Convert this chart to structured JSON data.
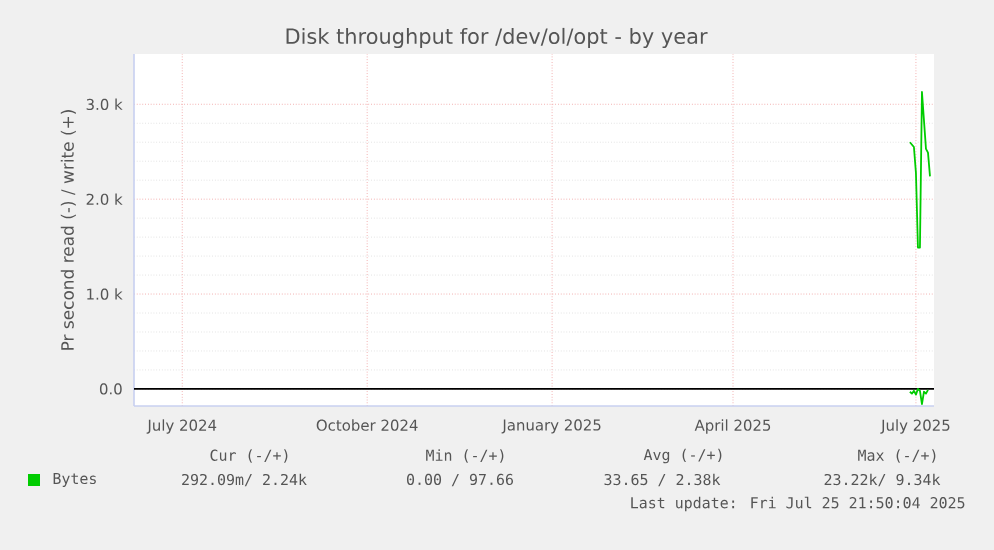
{
  "chart_data": {
    "type": "line",
    "title": "Disk throughput for /dev/ol/opt - by year",
    "ylabel": "Pr second read (-) / write (+)",
    "xlim": [
      "2024-06-22",
      "2025-07-25"
    ],
    "ylim": [
      -180,
      3530
    ],
    "xticks": [
      {
        "value": "2024-07-16",
        "label": "July 2024"
      },
      {
        "value": "2024-10-16",
        "label": "October 2024"
      },
      {
        "value": "2025-01-16",
        "label": "January 2025"
      },
      {
        "value": "2025-04-16",
        "label": "April 2025"
      },
      {
        "value": "2025-07-16",
        "label": "July 2025"
      }
    ],
    "yticks": [
      {
        "value": 0,
        "label": "0.0"
      },
      {
        "value": 1000,
        "label": "1.0 k"
      },
      {
        "value": 2000,
        "label": "2.0 k"
      },
      {
        "value": 3000,
        "label": "3.0 k"
      }
    ],
    "grid": true,
    "legend": "bottom",
    "series": [
      {
        "name": "Bytes",
        "color": "#00cc00",
        "x": [
          "2025-07-13",
          "2025-07-15",
          "2025-07-16",
          "2025-07-17",
          "2025-07-18",
          "2025-07-19",
          "2025-07-21",
          "2025-07-22",
          "2025-07-23"
        ],
        "values": [
          2600,
          2550,
          2280,
          1490,
          1490,
          3130,
          2530,
          2490,
          2240
        ]
      },
      {
        "color": "#00cc00",
        "x": [
          "2025-07-13",
          "2025-07-14",
          "2025-07-15",
          "2025-07-16",
          "2025-07-17",
          "2025-07-18",
          "2025-07-19",
          "2025-07-20",
          "2025-07-21",
          "2025-07-22"
        ],
        "values": [
          -30,
          -50,
          -20,
          -60,
          0,
          -20,
          -160,
          -30,
          -50,
          -10
        ]
      }
    ],
    "ref_lines": [
      {
        "axis": "y",
        "value": 0,
        "color": "#000000"
      }
    ],
    "annotations": [
      "Cur (-/+)",
      "Min (-/+)",
      "Avg (-/+)",
      "Max (-/+)",
      "292.09m/ 2.24k",
      "0.00 / 97.66",
      "33.65 / 2.38k",
      "23.22k/ 9.34k",
      "Last update: Fri Jul 25 21:50:04 2025"
    ]
  }
}
